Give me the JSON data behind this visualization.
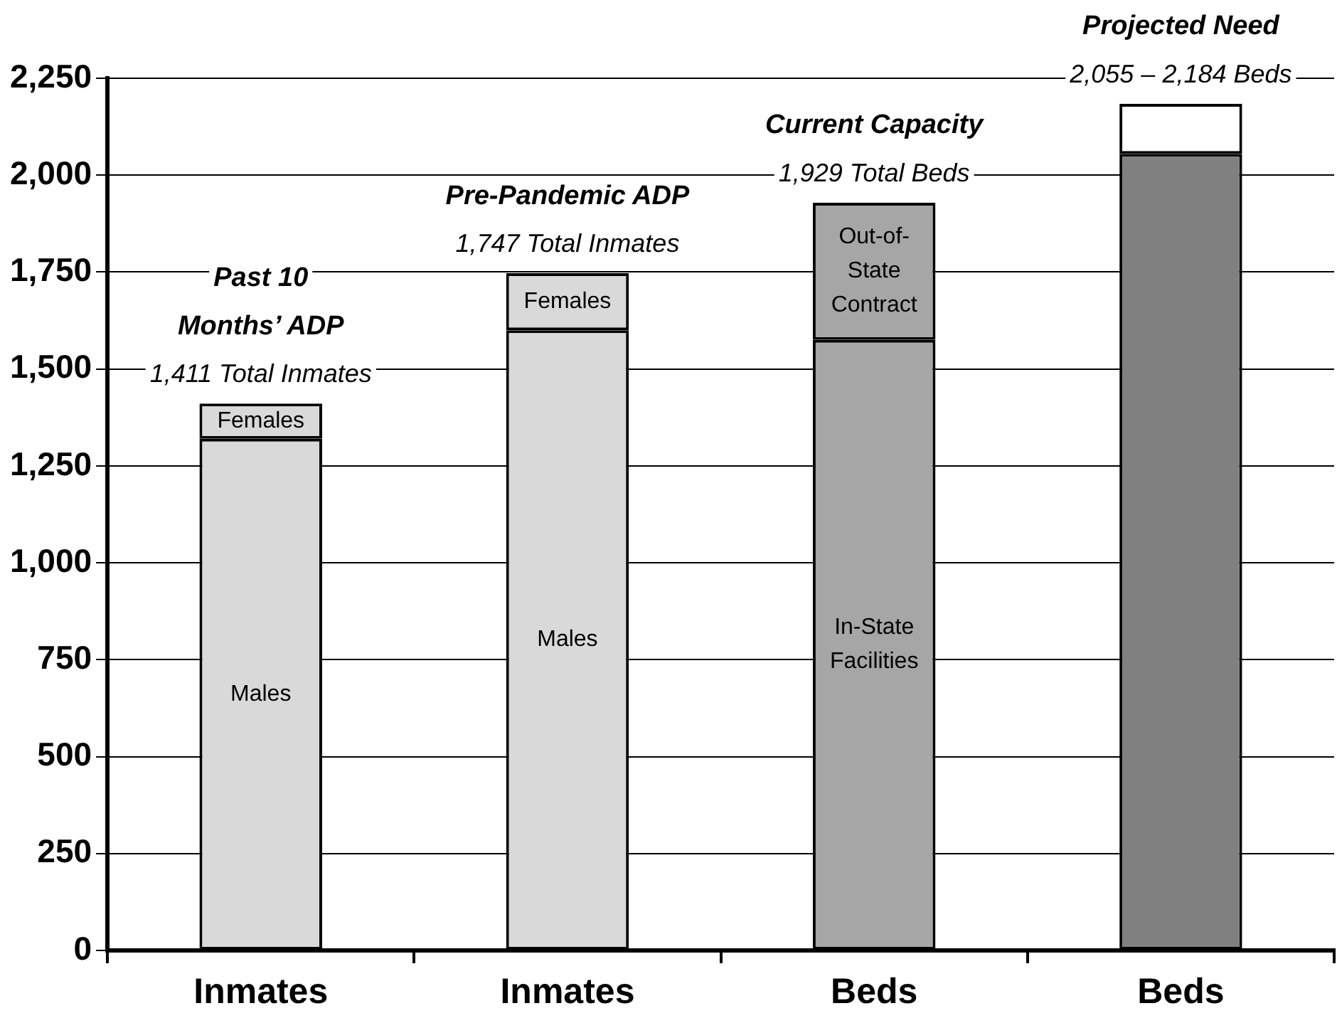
{
  "chart_data": {
    "type": "bar",
    "stacked": true,
    "categories": [
      "Inmates",
      "Inmates",
      "Beds",
      "Beds"
    ],
    "series": [
      {
        "colors": [
          "#d9d9d9",
          "#d9d9d9",
          "#a6a6a6",
          "#808080"
        ],
        "values": [
          1320,
          1600,
          1575,
          2055
        ],
        "value_labels": [
          "Males",
          "Males",
          "In-State Facilities",
          null
        ]
      },
      {
        "colors": [
          "#d9d9d9",
          "#d9d9d9",
          "#a6a6a6",
          "#ffffff"
        ],
        "values": [
          91,
          147,
          354,
          129
        ],
        "value_labels": [
          "Females",
          "Females",
          "Out-of-State Contract",
          null
        ]
      }
    ],
    "ylim": [
      0,
      2250
    ],
    "yticks": [
      {
        "value": 0,
        "label": "0"
      },
      {
        "value": 250,
        "label": "250"
      },
      {
        "value": 500,
        "label": "500"
      },
      {
        "value": 750,
        "label": "750"
      },
      {
        "value": 1000,
        "label": "1,000"
      },
      {
        "value": 1250,
        "label": "1,250"
      },
      {
        "value": 1500,
        "label": "1,500"
      },
      {
        "value": 1750,
        "label": "1,750"
      },
      {
        "value": 2000,
        "label": "2,000"
      },
      {
        "value": 2250,
        "label": "2,250"
      }
    ],
    "grid": "y",
    "legend": false,
    "annotations": [
      "Past 10 Months’ ADP",
      "1,411 Total Inmates",
      "Pre-Pandemic ADP",
      "1,747 Total Inmates",
      "Current Capacity",
      "1,929 Total Beds",
      "Projected Need",
      "2,055 – 2,184 Beds"
    ]
  }
}
